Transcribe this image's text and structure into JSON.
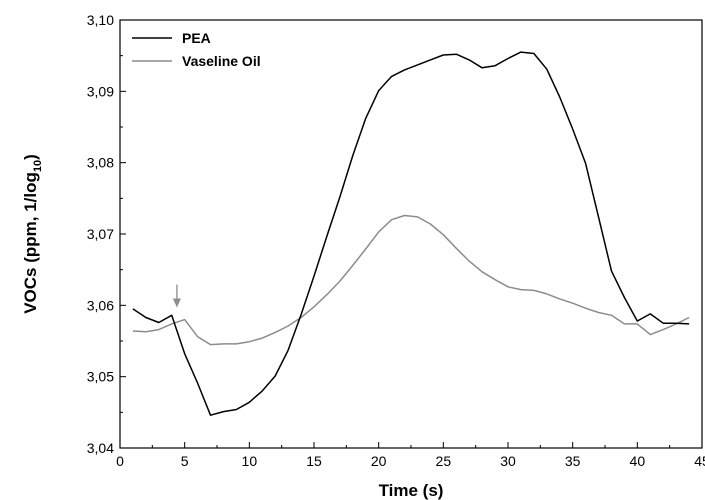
{
  "chart_data": {
    "type": "line",
    "title": "",
    "xlabel": "Time (s)",
    "ylabel": {
      "main": "VOCs (ppm, 1/log",
      "subscript": "10",
      "close": ")"
    },
    "xlim": [
      0,
      45
    ],
    "ylim": [
      3.04,
      3.1
    ],
    "xticks": [
      0,
      5,
      10,
      15,
      20,
      25,
      30,
      35,
      40,
      45
    ],
    "yticks": [
      3.04,
      3.05,
      3.06,
      3.07,
      3.08,
      3.09,
      3.1
    ],
    "xtick_labels": [
      "0",
      "5",
      "10",
      "15",
      "20",
      "25",
      "30",
      "35",
      "40",
      "45"
    ],
    "ytick_labels": [
      "3,04",
      "3,05",
      "3,06",
      "3,07",
      "3,08",
      "3,09",
      "3,10"
    ],
    "grid": false,
    "legend_position": "top-left",
    "annotations": [
      {
        "type": "arrow",
        "x": 4.4,
        "y_from": 3.0629,
        "y_to": 3.0597,
        "color": "#8c8c8c"
      }
    ],
    "series": [
      {
        "name": "PEA",
        "color": "#000000",
        "x": [
          1,
          2,
          3,
          4,
          5,
          6,
          7,
          8,
          9,
          10,
          11,
          12,
          13,
          14,
          15,
          16,
          17,
          18,
          19,
          20,
          21,
          22,
          23,
          24,
          25,
          26,
          27,
          28,
          29,
          30,
          31,
          32,
          33,
          34,
          35,
          36,
          37,
          38,
          39,
          40,
          41,
          42,
          43,
          44
        ],
        "y": [
          3.0595,
          3.0583,
          3.0576,
          3.0586,
          3.0532,
          3.0491,
          3.0446,
          3.0451,
          3.0454,
          3.0464,
          3.048,
          3.0501,
          3.0537,
          3.0587,
          3.0641,
          3.0697,
          3.0752,
          3.081,
          3.0862,
          3.0901,
          3.0921,
          3.093,
          3.0937,
          3.0944,
          3.0951,
          3.0952,
          3.0944,
          3.0933,
          3.0936,
          3.0946,
          3.0955,
          3.0953,
          3.0931,
          3.0892,
          3.0847,
          3.0799,
          3.0724,
          3.0648,
          3.0611,
          3.0578,
          3.0588,
          3.0575,
          3.0575,
          3.0574
        ]
      },
      {
        "name": "Vaseline Oil",
        "color": "#8c8c8c",
        "x": [
          1,
          2,
          3,
          4,
          5,
          6,
          7,
          8,
          9,
          10,
          11,
          12,
          13,
          14,
          15,
          16,
          17,
          18,
          19,
          20,
          21,
          22,
          23,
          24,
          25,
          26,
          27,
          28,
          29,
          30,
          31,
          32,
          33,
          34,
          35,
          36,
          37,
          38,
          39,
          40,
          41,
          42,
          43,
          44
        ],
        "y": [
          3.0564,
          3.0563,
          3.0566,
          3.0574,
          3.058,
          3.0556,
          3.0545,
          3.0546,
          3.0546,
          3.0549,
          3.0554,
          3.0562,
          3.0571,
          3.0583,
          3.0598,
          3.0615,
          3.0634,
          3.0656,
          3.0679,
          3.0703,
          3.072,
          3.0726,
          3.0724,
          3.0714,
          3.0699,
          3.068,
          3.0662,
          3.0647,
          3.0636,
          3.0626,
          3.0622,
          3.0621,
          3.0616,
          3.0609,
          3.0603,
          3.0596,
          3.059,
          3.0586,
          3.0574,
          3.0574,
          3.0559,
          3.0566,
          3.0574,
          3.0583
        ]
      }
    ]
  }
}
